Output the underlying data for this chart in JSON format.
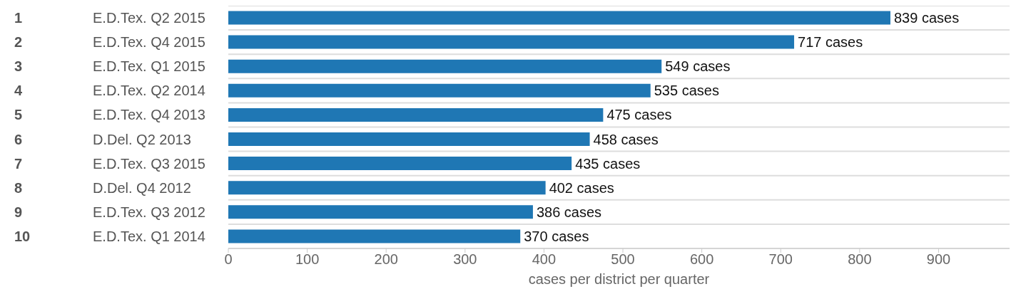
{
  "chart_data": {
    "type": "bar",
    "orientation": "horizontal",
    "xlabel": "cases per district per quarter",
    "categories": [
      "E.D.Tex. Q2 2015",
      "E.D.Tex. Q4 2015",
      "E.D.Tex. Q1 2015",
      "E.D.Tex. Q2 2014",
      "E.D.Tex. Q4 2013",
      "D.Del. Q2 2013",
      "E.D.Tex. Q3 2015",
      "D.Del. Q4 2012",
      "E.D.Tex. Q3 2012",
      "E.D.Tex. Q1 2014"
    ],
    "values": [
      839,
      717,
      549,
      535,
      475,
      458,
      435,
      402,
      386,
      370
    ],
    "value_labels": [
      "839 cases",
      "717 cases",
      "549 cases",
      "535 cases",
      "475 cases",
      "458 cases",
      "435 cases",
      "402 cases",
      "386 cases",
      "370 cases"
    ],
    "color": "#1f77b4",
    "annotations": [
      "1",
      "2",
      "3",
      "4",
      "5",
      "6",
      "7",
      "8",
      "9",
      "10"
    ],
    "xlim": [
      0,
      990
    ],
    "xticks": [
      0,
      100,
      200,
      300,
      400,
      500,
      600,
      700,
      800,
      900
    ],
    "grid": "y"
  }
}
